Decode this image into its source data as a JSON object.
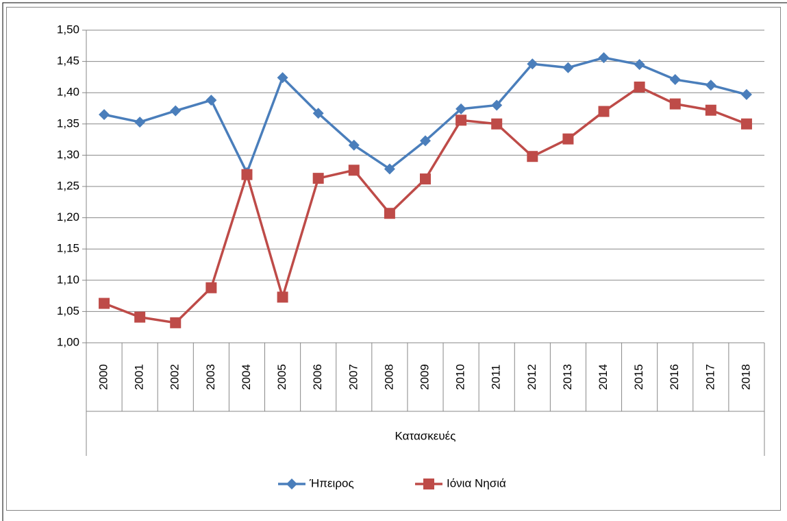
{
  "chart_data": {
    "type": "line",
    "categories": [
      "2000",
      "2001",
      "2002",
      "2003",
      "2004",
      "2005",
      "2006",
      "2007",
      "2008",
      "2009",
      "2010",
      "2011",
      "2012",
      "2013",
      "2014",
      "2015",
      "2016",
      "2017",
      "2018"
    ],
    "x_group_label": "Κατασκευές",
    "series": [
      {
        "name": "Ήπειρος",
        "color": "#4a7ebb",
        "marker": "diamond",
        "values": [
          1.365,
          1.353,
          1.371,
          1.388,
          1.272,
          1.424,
          1.367,
          1.316,
          1.278,
          1.323,
          1.374,
          1.38,
          1.446,
          1.44,
          1.456,
          1.445,
          1.421,
          1.412,
          1.397
        ]
      },
      {
        "name": "Ιόνια Νησιά",
        "color": "#be4b48",
        "marker": "square",
        "values": [
          1.063,
          1.041,
          1.032,
          1.088,
          1.269,
          1.073,
          1.263,
          1.276,
          1.207,
          1.262,
          1.356,
          1.35,
          1.298,
          1.326,
          1.37,
          1.409,
          1.382,
          1.372,
          1.35
        ]
      }
    ],
    "ylim": [
      1.0,
      1.5
    ],
    "yticks": [
      {
        "value": 1.0,
        "label": "1,00"
      },
      {
        "value": 1.05,
        "label": "1,05"
      },
      {
        "value": 1.1,
        "label": "1,10"
      },
      {
        "value": 1.15,
        "label": "1,15"
      },
      {
        "value": 1.2,
        "label": "1,20"
      },
      {
        "value": 1.25,
        "label": "1,25"
      },
      {
        "value": 1.3,
        "label": "1,30"
      },
      {
        "value": 1.35,
        "label": "1,35"
      },
      {
        "value": 1.4,
        "label": "1,40"
      },
      {
        "value": 1.45,
        "label": "1,45"
      },
      {
        "value": 1.5,
        "label": "1,50"
      }
    ],
    "grid": true,
    "legend": "bottom"
  }
}
